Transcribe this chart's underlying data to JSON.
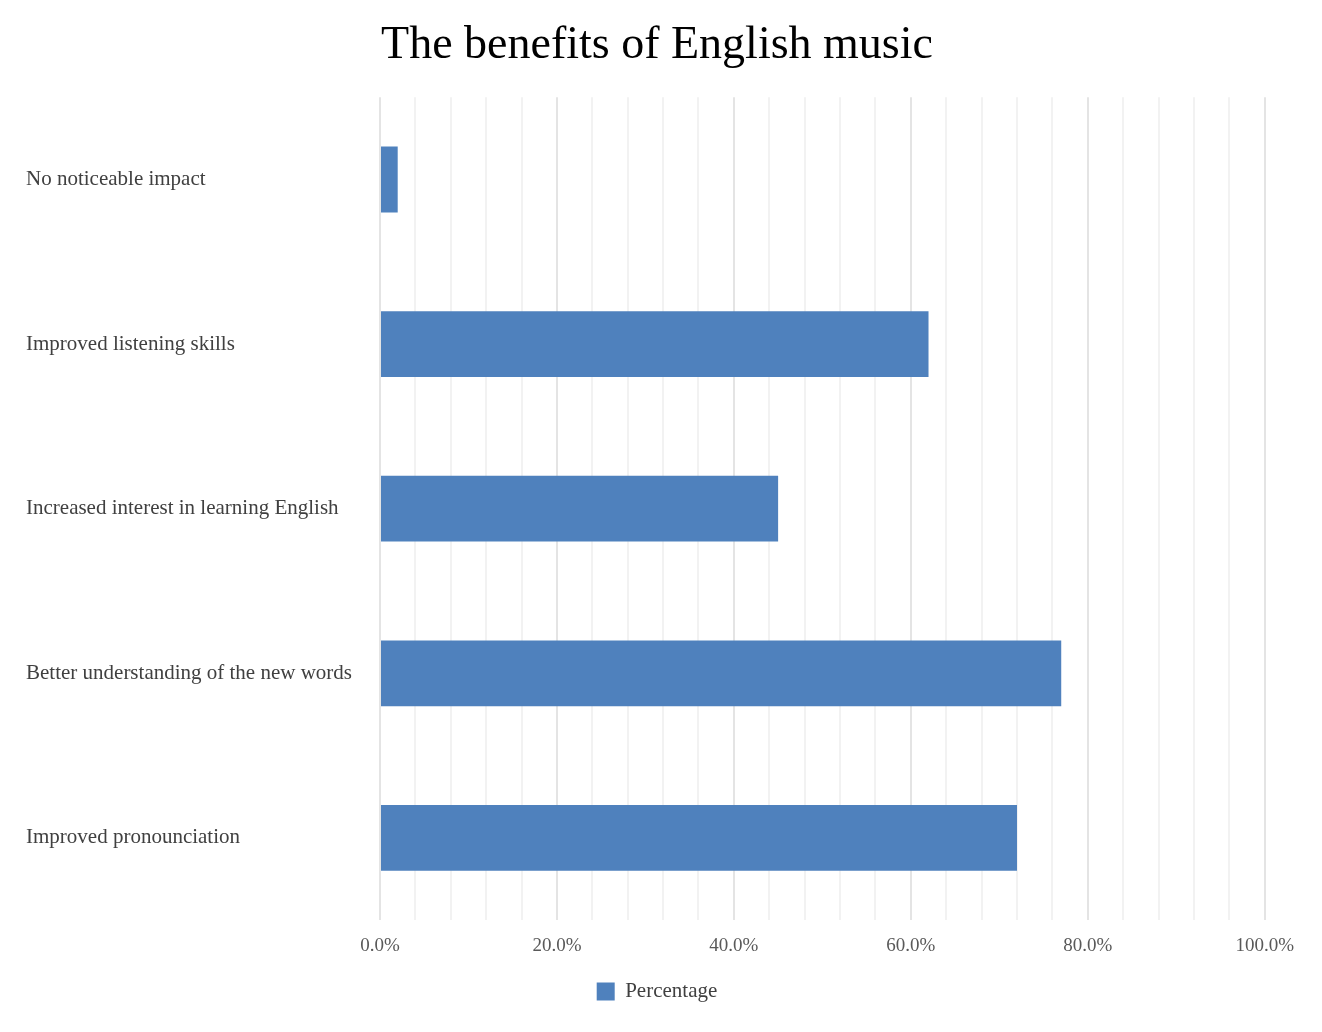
{
  "chart_data": {
    "type": "bar",
    "orientation": "horizontal",
    "title": "The benefits of English music",
    "categories": [
      "No noticeable impact",
      "Improved listening skills",
      "Increased interest in learning English",
      "Better understanding of the new words",
      "Improved pronounciation"
    ],
    "series": [
      {
        "name": "Percentage",
        "color": "#4f81bd",
        "values": [
          2,
          62,
          45,
          77,
          72
        ]
      }
    ],
    "xlim": [
      0,
      100
    ],
    "xticks": [
      {
        "value": 0,
        "label": "0.0%"
      },
      {
        "value": 4,
        "label": null
      },
      {
        "value": 8,
        "label": null
      },
      {
        "value": 12,
        "label": null
      },
      {
        "value": 16,
        "label": null
      },
      {
        "value": 20,
        "label": "20.0%"
      },
      {
        "value": 24,
        "label": null
      },
      {
        "value": 28,
        "label": null
      },
      {
        "value": 32,
        "label": null
      },
      {
        "value": 36,
        "label": null
      },
      {
        "value": 40,
        "label": "40.0%"
      },
      {
        "value": 44,
        "label": null
      },
      {
        "value": 48,
        "label": null
      },
      {
        "value": 52,
        "label": null
      },
      {
        "value": 56,
        "label": null
      },
      {
        "value": 60,
        "label": "60.0%"
      },
      {
        "value": 64,
        "label": null
      },
      {
        "value": 68,
        "label": null
      },
      {
        "value": 72,
        "label": null
      },
      {
        "value": 76,
        "label": null
      },
      {
        "value": 80,
        "label": "80.0%"
      },
      {
        "value": 84,
        "label": null
      },
      {
        "value": 88,
        "label": null
      },
      {
        "value": 92,
        "label": null
      },
      {
        "value": 96,
        "label": null
      },
      {
        "value": 100,
        "label": "100.0%"
      }
    ],
    "grid": "x",
    "legend": "bottom"
  }
}
